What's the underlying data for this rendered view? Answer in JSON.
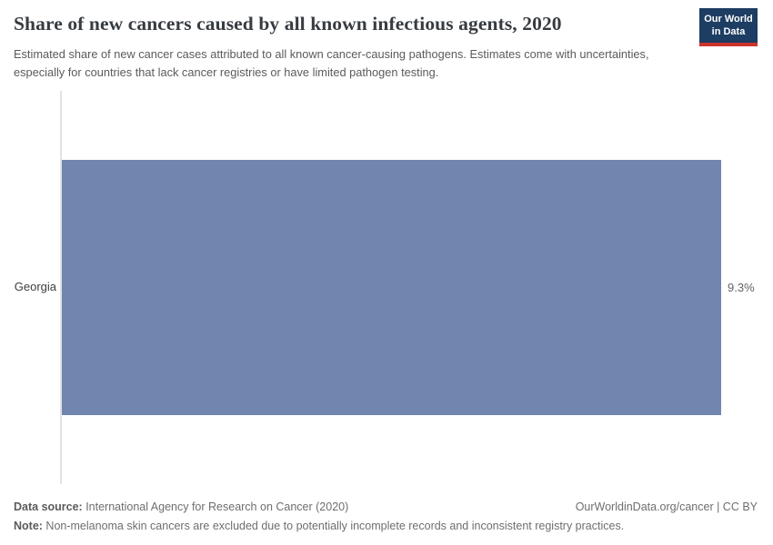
{
  "header": {
    "title": "Share of new cancers caused by all known infectious agents, 2020",
    "subtitle": "Estimated share of new cancer cases attributed to all known cancer-causing pathogens. Estimates come with uncertainties, especially for countries that lack cancer registries or have limited pathogen testing.",
    "logo": {
      "line1": "Our World",
      "line2": "in Data"
    }
  },
  "chart_data": {
    "type": "bar",
    "orientation": "horizontal",
    "title": "Share of new cancers caused by all known infectious agents, 2020",
    "categories": [
      "Georgia"
    ],
    "values": [
      9.3
    ],
    "value_labels": [
      "9.3%"
    ],
    "xlabel": "",
    "ylabel": "",
    "xlim": [
      0,
      9.3
    ],
    "grid": false,
    "legend": false,
    "bar_color": "#7186ae",
    "axis_color": "#e2e2e2"
  },
  "footer": {
    "source_prefix": "Data source:",
    "source_text": " International Agency for Research on Cancer (2020)",
    "rights": "OurWorldinData.org/cancer | CC BY",
    "note_prefix": "Note:",
    "note_text": " Non-melanoma skin cancers are excluded due to potentially incomplete records and inconsistent registry practices."
  }
}
